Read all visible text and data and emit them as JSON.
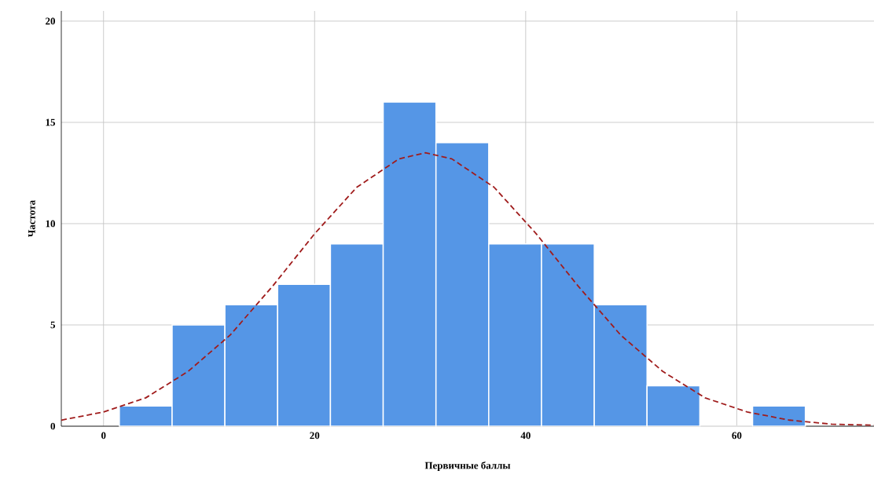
{
  "chart_data": {
    "type": "histogram",
    "xlabel": "Первичные баллы",
    "ylabel": "Частота",
    "bins": [
      1.5,
      6.5,
      11.5,
      16.5,
      21.5,
      26.5,
      31.5,
      36.5,
      41.5,
      46.5,
      51.5,
      56.5,
      61.5,
      66.5
    ],
    "values": [
      1,
      5,
      6,
      7,
      9,
      16,
      14,
      9,
      9,
      6,
      2,
      0,
      1
    ],
    "color": "#5596e6",
    "series": [
      {
        "type": "line",
        "color": "#a01c1c",
        "line_style": "dashed",
        "x": [
          -4,
          0,
          4,
          8,
          12,
          16,
          20,
          24,
          28,
          30.5,
          33,
          37,
          41,
          45,
          49,
          53,
          57,
          61,
          65,
          69,
          73
        ],
        "values": [
          0.3,
          0.7,
          1.4,
          2.7,
          4.5,
          6.9,
          9.5,
          11.8,
          13.2,
          13.5,
          13.2,
          11.8,
          9.5,
          6.9,
          4.5,
          2.7,
          1.4,
          0.7,
          0.3,
          0.1,
          0.05
        ]
      }
    ],
    "xlim": [
      -4,
      73
    ],
    "ylim": [
      0,
      20.5
    ],
    "xticks": [
      0,
      20,
      40,
      60
    ],
    "yticks": [
      0,
      5,
      10,
      15,
      20
    ],
    "grid": true
  }
}
